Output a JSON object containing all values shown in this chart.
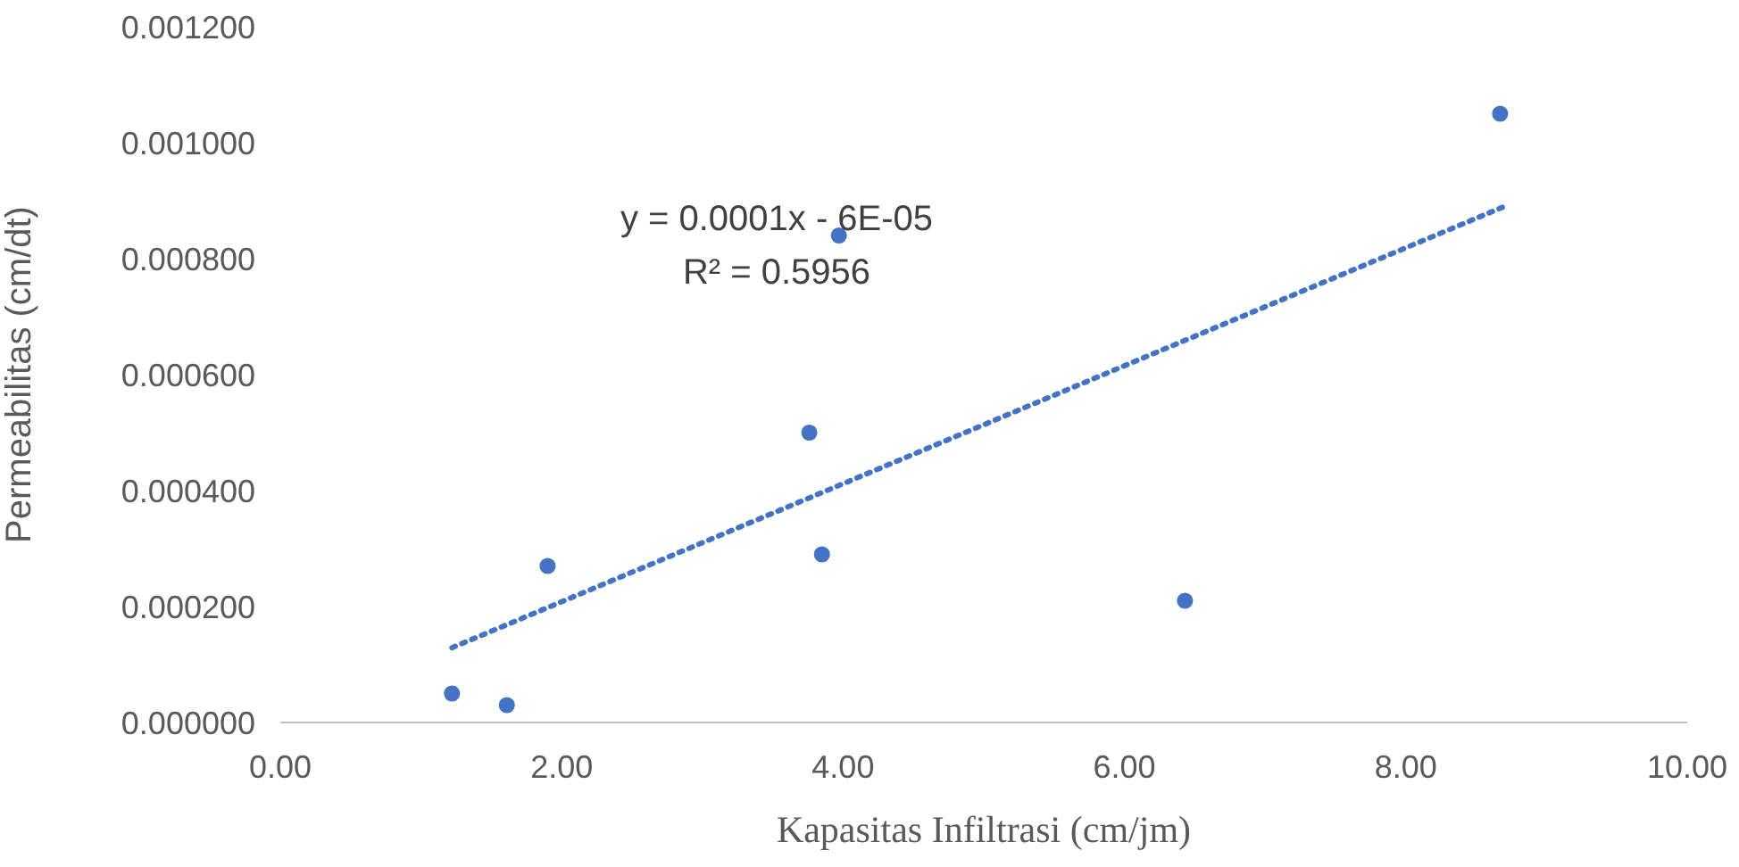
{
  "chart_data": {
    "type": "scatter",
    "xlabel": "Kapasitas Infiltrasi (cm/jm)",
    "ylabel": "Permeabilitas (cm/dt)",
    "series": [
      {
        "color": "#4472c4",
        "marker": "circle",
        "x": [
          1.22,
          1.61,
          1.9,
          3.76,
          3.85,
          3.97,
          6.43,
          8.67
        ],
        "values": [
          5e-05,
          3e-05,
          0.00027,
          0.0005,
          0.00029,
          0.00084,
          0.00021,
          0.00105
        ]
      },
      {
        "type": "line",
        "color": "#4472c4",
        "line_style": "dotted",
        "marker": "none",
        "x": [
          1.22,
          8.69
        ],
        "values": [
          0.000129,
          0.000889
        ]
      }
    ],
    "annotations": [
      "y = 0.0001x - 6E-05",
      "R² = 0.5956"
    ],
    "xlim": [
      0,
      10
    ],
    "xticks": [
      {
        "value": 0,
        "label": "0.00"
      },
      {
        "value": 2,
        "label": "2.00"
      },
      {
        "value": 4,
        "label": "4.00"
      },
      {
        "value": 6,
        "label": "6.00"
      },
      {
        "value": 8,
        "label": "8.00"
      },
      {
        "value": 10,
        "label": "10.00"
      }
    ],
    "ylim": [
      0,
      0.0012
    ],
    "yticks": [
      {
        "value": 0,
        "label": "0.000000"
      },
      {
        "value": 0.0002,
        "label": "0.000200"
      },
      {
        "value": 0.0004,
        "label": "0.000400"
      },
      {
        "value": 0.0006,
        "label": "0.000600"
      },
      {
        "value": 0.0008,
        "label": "0.000800"
      },
      {
        "value": 0.001,
        "label": "0.001000"
      },
      {
        "value": 0.0012,
        "label": "0.001200"
      }
    ],
    "grid": false,
    "legend": false
  }
}
